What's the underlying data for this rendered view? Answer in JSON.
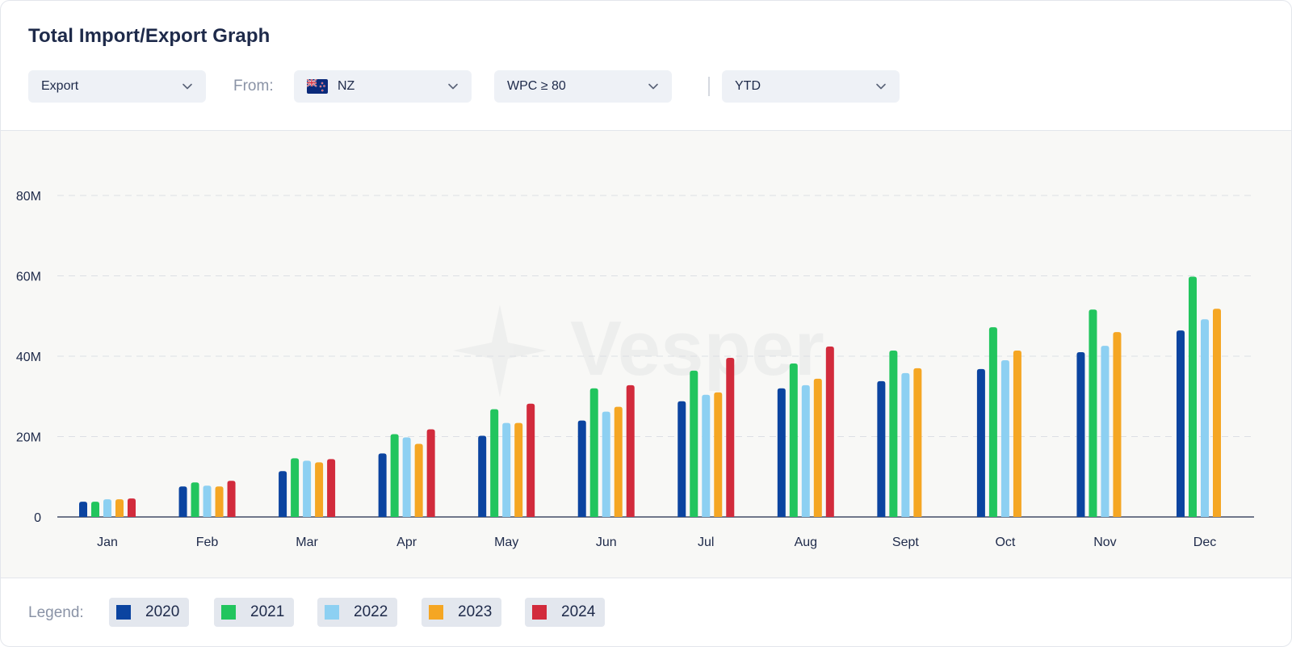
{
  "header": {
    "title": "Total Import/Export Graph"
  },
  "filters": {
    "flow": {
      "value": "Export"
    },
    "from_label": "From:",
    "country": {
      "value": "NZ",
      "flag_icon": "nz-flag-icon"
    },
    "wpc": {
      "value": "WPC ≥ 80"
    },
    "period": {
      "value": "YTD"
    }
  },
  "watermark": {
    "text": "Vesper"
  },
  "legend": {
    "label": "Legend:",
    "items": [
      {
        "name": "2020",
        "color": "#0b44a0"
      },
      {
        "name": "2021",
        "color": "#22c55e"
      },
      {
        "name": "2022",
        "color": "#8dd0f2"
      },
      {
        "name": "2023",
        "color": "#f5a623"
      },
      {
        "name": "2024",
        "color": "#d22b3c"
      }
    ]
  },
  "chart_data": {
    "type": "bar",
    "title": "",
    "xlabel": "",
    "ylabel": "",
    "ylim": [
      0,
      80000000
    ],
    "yticks": [
      0,
      20000000,
      40000000,
      60000000,
      80000000
    ],
    "ytick_labels": [
      "0",
      "20M",
      "40M",
      "60M",
      "80M"
    ],
    "grid": true,
    "legend_position": "bottom",
    "categories": [
      "Jan",
      "Feb",
      "Mar",
      "Apr",
      "May",
      "Jun",
      "Jul",
      "Aug",
      "Sept",
      "Oct",
      "Nov",
      "Dec"
    ],
    "series": [
      {
        "name": "2020",
        "color": "#0b44a0",
        "values": [
          3800000,
          7600000,
          11400000,
          15800000,
          20200000,
          24000000,
          28800000,
          32000000,
          33800000,
          36800000,
          41000000,
          46400000
        ]
      },
      {
        "name": "2021",
        "color": "#22c55e",
        "values": [
          3800000,
          8600000,
          14600000,
          20600000,
          26800000,
          32000000,
          36400000,
          38200000,
          41400000,
          47200000,
          51600000,
          59800000
        ]
      },
      {
        "name": "2022",
        "color": "#8dd0f2",
        "values": [
          4400000,
          7800000,
          14000000,
          19800000,
          23400000,
          26200000,
          30400000,
          32800000,
          35800000,
          39000000,
          42600000,
          49200000
        ]
      },
      {
        "name": "2023",
        "color": "#f5a623",
        "values": [
          4400000,
          7600000,
          13600000,
          18200000,
          23400000,
          27400000,
          31000000,
          34400000,
          37000000,
          41400000,
          46000000,
          51800000
        ]
      },
      {
        "name": "2024",
        "color": "#d22b3c",
        "values": [
          4600000,
          9000000,
          14400000,
          21800000,
          28200000,
          32800000,
          39600000,
          42400000,
          null,
          null,
          null,
          null
        ]
      }
    ]
  }
}
